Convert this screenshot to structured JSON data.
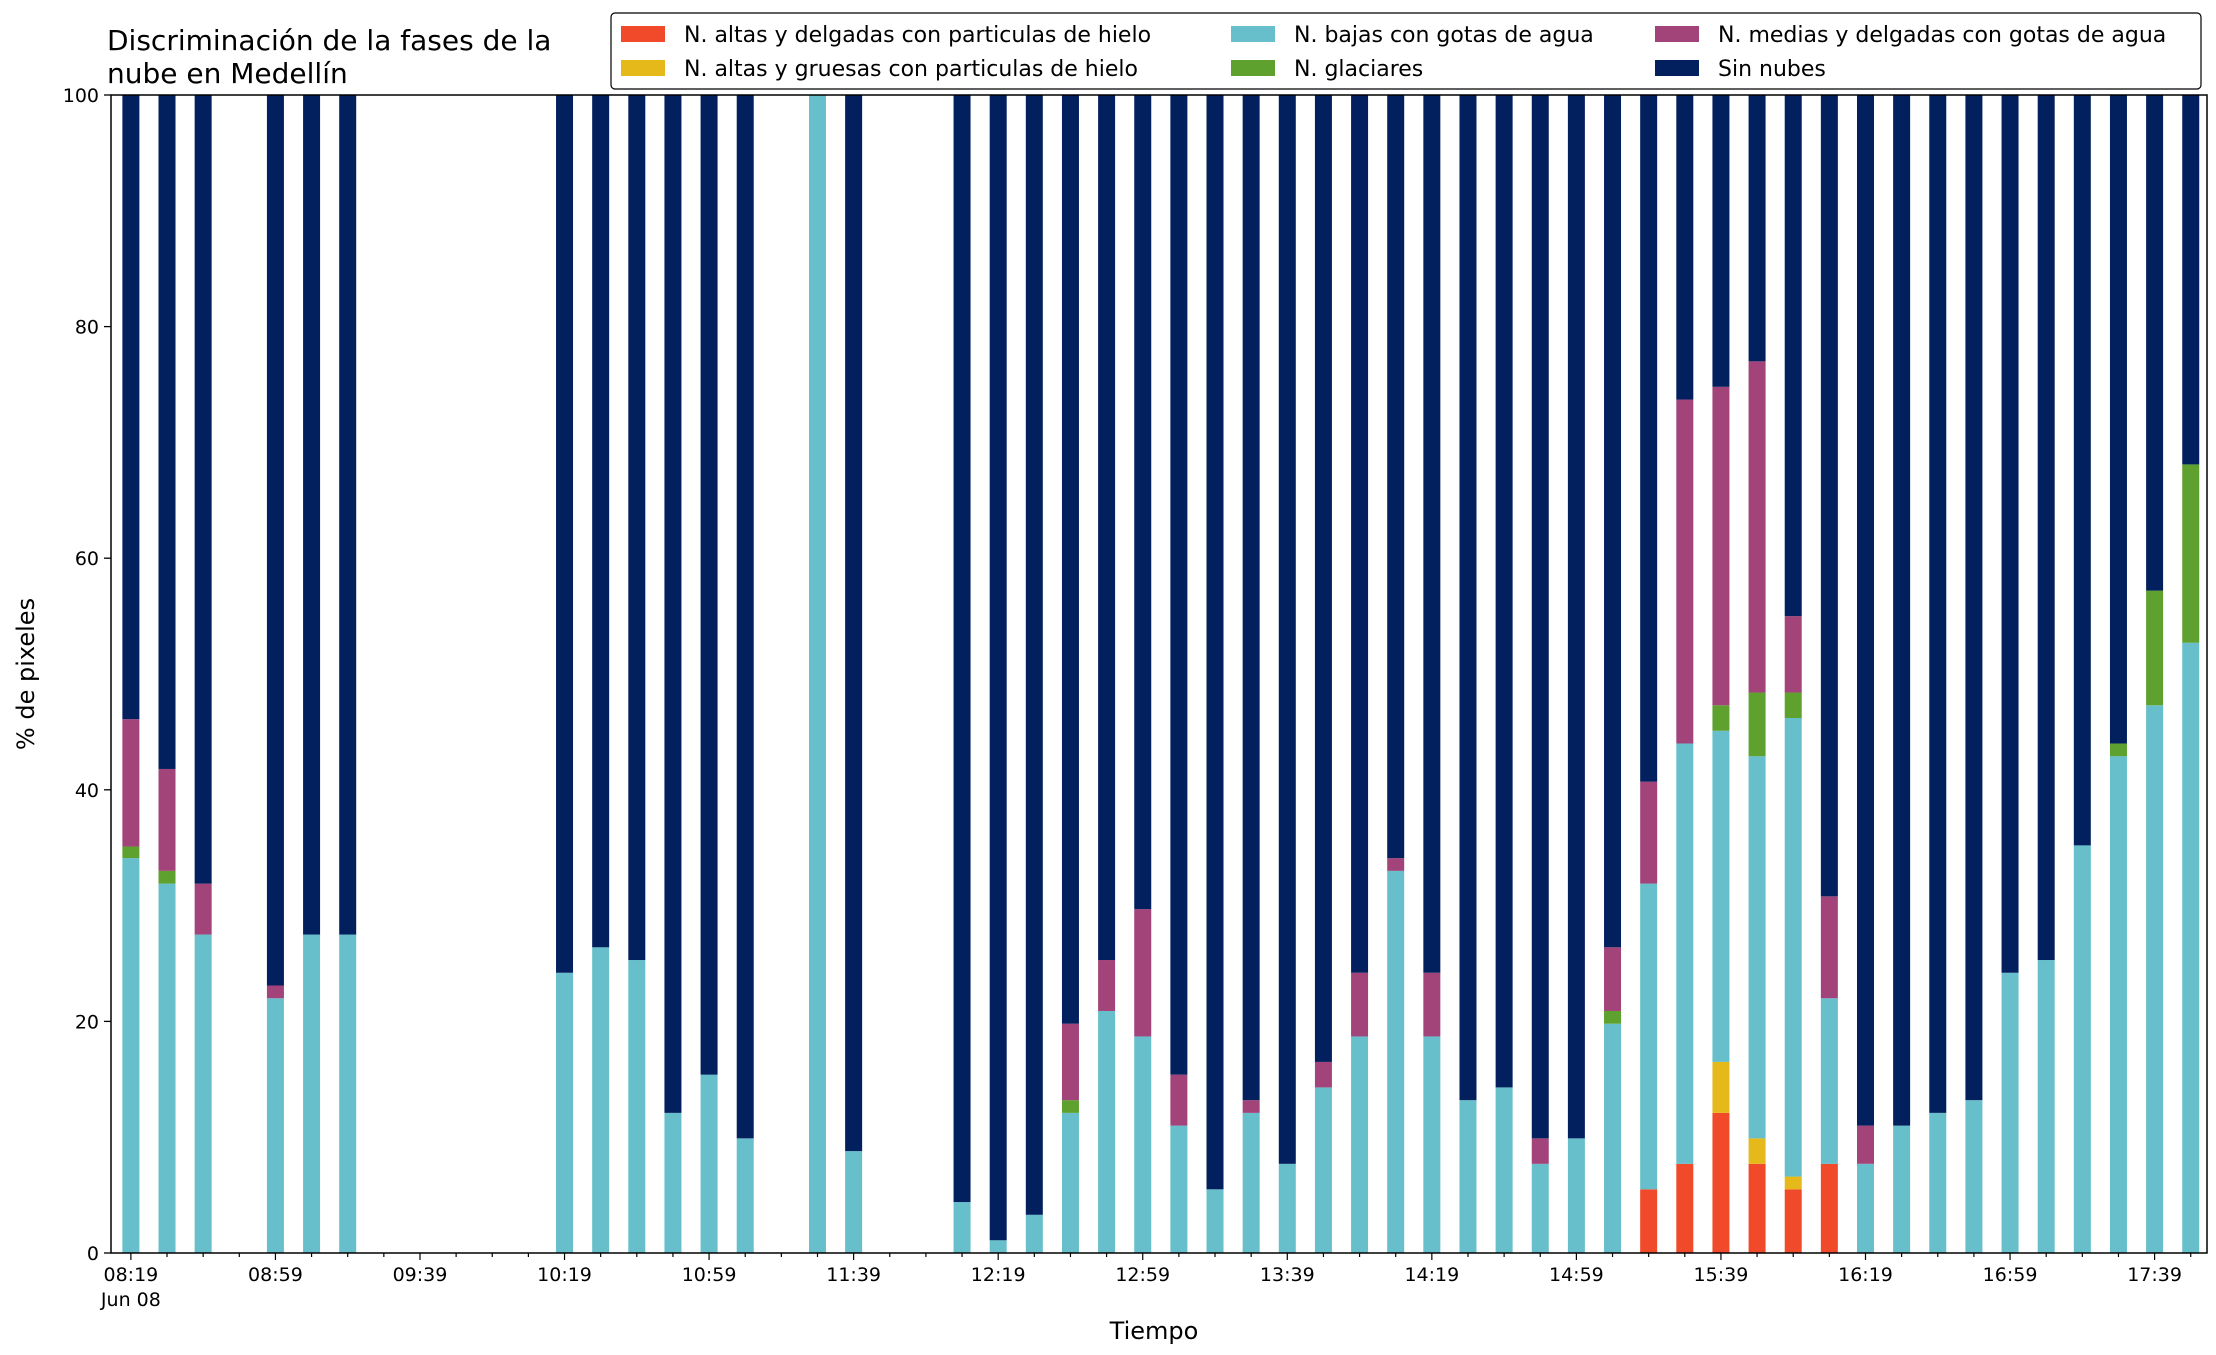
{
  "chart_data": {
    "type": "bar",
    "stacked": true,
    "title_lines": [
      "Discriminación de la fases de la",
      "nube en Medellín"
    ],
    "xlabel": "Tiempo",
    "ylabel": "% de pixeles",
    "ylim": [
      0,
      100
    ],
    "yticks": [
      0,
      20,
      40,
      60,
      80,
      100
    ],
    "x_start_minutes": 499,
    "x_step_minutes": 10,
    "x_end_minutes": 1069,
    "xtick_labels": [
      "08:19",
      "08:59",
      "09:39",
      "10:19",
      "10:59",
      "11:39",
      "12:19",
      "12:59",
      "13:39",
      "14:19",
      "14:59",
      "15:39",
      "16:19",
      "16:59",
      "17:39"
    ],
    "xtick_sublabel": "Jun 08",
    "grid": false,
    "legend": {
      "placement": "top-right",
      "columns": 3
    },
    "legend_order": [
      "ahd",
      "agg",
      "bajas",
      "glac",
      "medias",
      "sin"
    ],
    "series": [
      {
        "key": "ahd",
        "name": "N. altas y delgadas con particulas de hielo",
        "color": "#f04a2b"
      },
      {
        "key": "agg",
        "name": "N. altas y gruesas con particulas de hielo",
        "color": "#e6b91a"
      },
      {
        "key": "bajas",
        "name": "N. bajas con gotas de agua",
        "color": "#66bfcb"
      },
      {
        "key": "glac",
        "name": "N. glaciares",
        "color": "#5ea12e"
      },
      {
        "key": "medias",
        "name": "N. medias y delgadas con gotas de agua",
        "color": "#a2447a"
      },
      {
        "key": "sin",
        "name": "Sin nubes",
        "color": "#03205e"
      }
    ],
    "stack_order": [
      "ahd",
      "agg",
      "bajas",
      "glac",
      "medias",
      "sin"
    ],
    "bars": [
      {
        "time": "08:19",
        "ahd": 0,
        "agg": 0,
        "bajas": 34.1,
        "glac": 1.0,
        "medias": 11.0,
        "sin": 53.9
      },
      {
        "time": "08:29",
        "ahd": 0,
        "agg": 0,
        "bajas": 31.9,
        "glac": 1.1,
        "medias": 8.8,
        "sin": 58.2
      },
      {
        "time": "08:39",
        "ahd": 0,
        "agg": 0,
        "bajas": 27.5,
        "glac": 0,
        "medias": 4.4,
        "sin": 68.1
      },
      {
        "time": "08:59",
        "ahd": 0,
        "agg": 0,
        "bajas": 22.0,
        "glac": 0,
        "medias": 1.1,
        "sin": 76.9
      },
      {
        "time": "09:09",
        "ahd": 0,
        "agg": 0,
        "bajas": 27.5,
        "glac": 0,
        "medias": 0,
        "sin": 72.5
      },
      {
        "time": "09:19",
        "ahd": 0,
        "agg": 0,
        "bajas": 27.5,
        "glac": 0,
        "medias": 0,
        "sin": 72.5
      },
      {
        "time": "10:19",
        "ahd": 0,
        "agg": 0,
        "bajas": 24.2,
        "glac": 0,
        "medias": 0,
        "sin": 75.8
      },
      {
        "time": "10:29",
        "ahd": 0,
        "agg": 0,
        "bajas": 26.4,
        "glac": 0,
        "medias": 0,
        "sin": 73.6
      },
      {
        "time": "10:39",
        "ahd": 0,
        "agg": 0,
        "bajas": 25.3,
        "glac": 0,
        "medias": 0,
        "sin": 74.7
      },
      {
        "time": "10:49",
        "ahd": 0,
        "agg": 0,
        "bajas": 12.1,
        "glac": 0,
        "medias": 0,
        "sin": 87.9
      },
      {
        "time": "10:59",
        "ahd": 0,
        "agg": 0,
        "bajas": 15.4,
        "glac": 0,
        "medias": 0,
        "sin": 84.6
      },
      {
        "time": "11:09",
        "ahd": 0,
        "agg": 0,
        "bajas": 9.9,
        "glac": 0,
        "medias": 0,
        "sin": 90.1
      },
      {
        "time": "11:29",
        "ahd": 0,
        "agg": 0,
        "bajas": 100,
        "glac": 0,
        "medias": 0,
        "sin": 0
      },
      {
        "time": "11:39",
        "ahd": 0,
        "agg": 0,
        "bajas": 8.8,
        "glac": 0,
        "medias": 0,
        "sin": 91.2
      },
      {
        "time": "12:09",
        "ahd": 0,
        "agg": 0,
        "bajas": 4.4,
        "glac": 0,
        "medias": 0,
        "sin": 95.6
      },
      {
        "time": "12:19",
        "ahd": 0,
        "agg": 0,
        "bajas": 1.1,
        "glac": 0,
        "medias": 0,
        "sin": 98.9
      },
      {
        "time": "12:29",
        "ahd": 0,
        "agg": 0,
        "bajas": 3.3,
        "glac": 0,
        "medias": 0,
        "sin": 96.7
      },
      {
        "time": "12:39",
        "ahd": 0,
        "agg": 0,
        "bajas": 12.1,
        "glac": 1.1,
        "medias": 6.6,
        "sin": 80.2
      },
      {
        "time": "12:49",
        "ahd": 0,
        "agg": 0,
        "bajas": 20.9,
        "glac": 0,
        "medias": 4.4,
        "sin": 74.7
      },
      {
        "time": "12:59",
        "ahd": 0,
        "agg": 0,
        "bajas": 18.7,
        "glac": 0,
        "medias": 11.0,
        "sin": 70.3
      },
      {
        "time": "13:09",
        "ahd": 0,
        "agg": 0,
        "bajas": 11.0,
        "glac": 0,
        "medias": 4.4,
        "sin": 84.6
      },
      {
        "time": "13:19",
        "ahd": 0,
        "agg": 0,
        "bajas": 5.5,
        "glac": 0,
        "medias": 0,
        "sin": 94.5
      },
      {
        "time": "13:29",
        "ahd": 0,
        "agg": 0,
        "bajas": 12.1,
        "glac": 0,
        "medias": 1.1,
        "sin": 86.8
      },
      {
        "time": "13:39",
        "ahd": 0,
        "agg": 0,
        "bajas": 7.7,
        "glac": 0,
        "medias": 0,
        "sin": 92.3
      },
      {
        "time": "13:49",
        "ahd": 0,
        "agg": 0,
        "bajas": 14.3,
        "glac": 0,
        "medias": 2.2,
        "sin": 83.5
      },
      {
        "time": "13:59",
        "ahd": 0,
        "agg": 0,
        "bajas": 18.7,
        "glac": 0,
        "medias": 5.5,
        "sin": 75.8
      },
      {
        "time": "14:09",
        "ahd": 0,
        "agg": 0,
        "bajas": 33.0,
        "glac": 0,
        "medias": 1.1,
        "sin": 65.9
      },
      {
        "time": "14:19",
        "ahd": 0,
        "agg": 0,
        "bajas": 18.7,
        "glac": 0,
        "medias": 5.5,
        "sin": 75.8
      },
      {
        "time": "14:29",
        "ahd": 0,
        "agg": 0,
        "bajas": 13.2,
        "glac": 0,
        "medias": 0,
        "sin": 86.8
      },
      {
        "time": "14:39",
        "ahd": 0,
        "agg": 0,
        "bajas": 14.3,
        "glac": 0,
        "medias": 0,
        "sin": 85.7
      },
      {
        "time": "14:49",
        "ahd": 0,
        "agg": 0,
        "bajas": 7.7,
        "glac": 0,
        "medias": 2.2,
        "sin": 90.1
      },
      {
        "time": "14:59",
        "ahd": 0,
        "agg": 0,
        "bajas": 9.9,
        "glac": 0,
        "medias": 0,
        "sin": 90.1
      },
      {
        "time": "15:09",
        "ahd": 0,
        "agg": 0,
        "bajas": 19.8,
        "glac": 1.1,
        "medias": 5.5,
        "sin": 73.6
      },
      {
        "time": "15:19",
        "ahd": 5.5,
        "agg": 0,
        "bajas": 26.4,
        "glac": 0,
        "medias": 8.8,
        "sin": 59.3
      },
      {
        "time": "15:29",
        "ahd": 7.7,
        "agg": 0,
        "bajas": 36.3,
        "glac": 0,
        "medias": 29.7,
        "sin": 26.3
      },
      {
        "time": "15:39",
        "ahd": 12.1,
        "agg": 4.4,
        "bajas": 28.6,
        "glac": 2.2,
        "medias": 27.5,
        "sin": 25.2
      },
      {
        "time": "15:49",
        "ahd": 7.7,
        "agg": 2.2,
        "bajas": 33.0,
        "glac": 5.5,
        "medias": 28.6,
        "sin": 23.0
      },
      {
        "time": "15:59",
        "ahd": 5.5,
        "agg": 1.1,
        "bajas": 39.6,
        "glac": 2.2,
        "medias": 6.6,
        "sin": 45.0
      },
      {
        "time": "16:09",
        "ahd": 7.7,
        "agg": 0,
        "bajas": 14.3,
        "glac": 0,
        "medias": 8.8,
        "sin": 69.2
      },
      {
        "time": "16:19",
        "ahd": 0,
        "agg": 0,
        "bajas": 7.7,
        "glac": 0,
        "medias": 3.3,
        "sin": 89.0
      },
      {
        "time": "16:29",
        "ahd": 0,
        "agg": 0,
        "bajas": 11.0,
        "glac": 0,
        "medias": 0,
        "sin": 89.0
      },
      {
        "time": "16:39",
        "ahd": 0,
        "agg": 0,
        "bajas": 12.1,
        "glac": 0,
        "medias": 0,
        "sin": 87.9
      },
      {
        "time": "16:49",
        "ahd": 0,
        "agg": 0,
        "bajas": 13.2,
        "glac": 0,
        "medias": 0,
        "sin": 86.8
      },
      {
        "time": "16:59",
        "ahd": 0,
        "agg": 0,
        "bajas": 24.2,
        "glac": 0,
        "medias": 0,
        "sin": 75.8
      },
      {
        "time": "17:09",
        "ahd": 0,
        "agg": 0,
        "bajas": 25.3,
        "glac": 0,
        "medias": 0,
        "sin": 74.7
      },
      {
        "time": "17:19",
        "ahd": 0,
        "agg": 0,
        "bajas": 35.2,
        "glac": 0,
        "medias": 0,
        "sin": 64.8
      },
      {
        "time": "17:29",
        "ahd": 0,
        "agg": 0,
        "bajas": 42.9,
        "glac": 1.1,
        "medias": 0,
        "sin": 56.0
      },
      {
        "time": "17:39",
        "ahd": 0,
        "agg": 0,
        "bajas": 47.3,
        "glac": 9.9,
        "medias": 0,
        "sin": 42.8
      },
      {
        "time": "17:49",
        "ahd": 0,
        "agg": 0,
        "bajas": 52.7,
        "glac": 15.4,
        "medias": 0,
        "sin": 31.9
      }
    ]
  }
}
